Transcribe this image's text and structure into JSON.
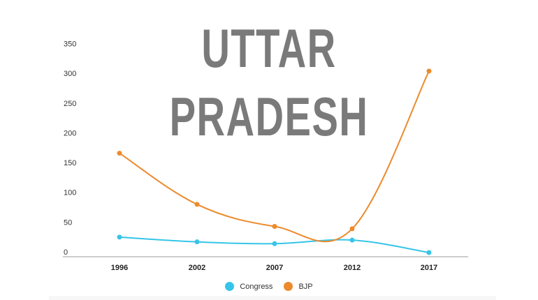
{
  "title": {
    "line1": "UTTAR",
    "line2": "PRADESH"
  },
  "colors": {
    "congress": "#36c5e8",
    "bjp": "#ec8a2c",
    "title": "#7a7a7a",
    "axis": "#999999"
  },
  "legend": [
    {
      "label": "Congress",
      "color": "#36c5e8"
    },
    {
      "label": "BJP",
      "color": "#ec8a2c"
    }
  ],
  "chart_data": {
    "type": "line",
    "title": "UTTAR PRADESH",
    "xlabel": "",
    "ylabel": "",
    "categories": [
      "1996",
      "2002",
      "2007",
      "2012",
      "2017"
    ],
    "series": [
      {
        "name": "Congress",
        "color": "#36c5e8",
        "values": [
          33,
          25,
          22,
          28,
          7
        ]
      },
      {
        "name": "BJP",
        "color": "#ec8a2c",
        "values": [
          174,
          88,
          51,
          47,
          312
        ]
      }
    ],
    "yticks": [
      "0",
      "50",
      "100",
      "150",
      "200",
      "250",
      "300",
      "350"
    ],
    "ylim": [
      0,
      350
    ],
    "grid": false,
    "smooth": true,
    "legend_position": "bottom"
  }
}
